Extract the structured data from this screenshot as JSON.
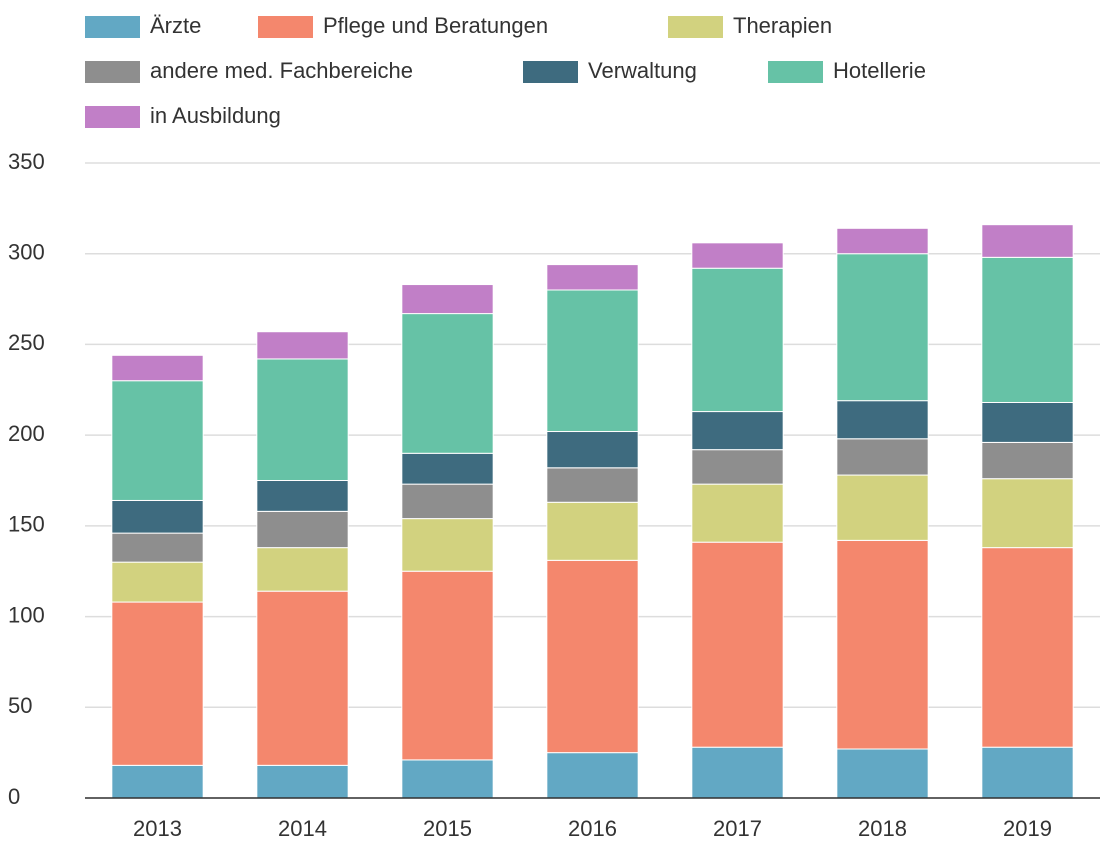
{
  "chart_data": {
    "type": "stacked_bar",
    "categories": [
      "2013",
      "2014",
      "2015",
      "2016",
      "2017",
      "2018",
      "2019"
    ],
    "series": [
      {
        "name": "Ärzte",
        "color": "#62a8c4",
        "values": [
          18,
          18,
          21,
          25,
          28,
          27,
          28
        ]
      },
      {
        "name": "Pflege und Beratungen",
        "color": "#f4876d",
        "values": [
          90,
          96,
          104,
          106,
          113,
          115,
          110
        ]
      },
      {
        "name": "Therapien",
        "color": "#d2d27f",
        "values": [
          22,
          24,
          29,
          32,
          32,
          36,
          38
        ]
      },
      {
        "name": "andere med. Fachbereiche",
        "color": "#8e8e8e",
        "values": [
          16,
          20,
          19,
          19,
          19,
          20,
          20
        ]
      },
      {
        "name": "Verwaltung",
        "color": "#3e6b7f",
        "values": [
          18,
          17,
          17,
          20,
          21,
          21,
          22
        ]
      },
      {
        "name": "Hotellerie",
        "color": "#66c2a6",
        "values": [
          66,
          67,
          77,
          78,
          79,
          81,
          80
        ]
      },
      {
        "name": "in Ausbildung",
        "color": "#c17fc7",
        "values": [
          14,
          15,
          16,
          14,
          14,
          14,
          18
        ]
      }
    ],
    "ylim": [
      0,
      350
    ],
    "yticks": [
      0,
      50,
      100,
      150,
      200,
      250,
      300,
      350
    ],
    "grid": true,
    "legend": "top"
  }
}
